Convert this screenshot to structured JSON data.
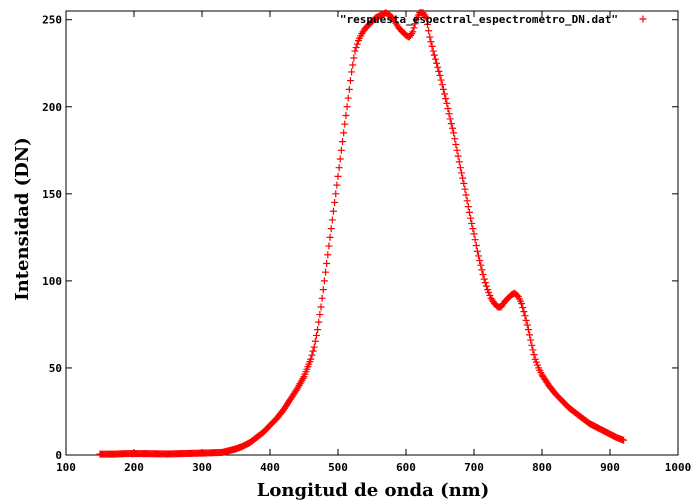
{
  "chart_data": {
    "type": "scatter",
    "title": "",
    "xlabel": "Longitud de onda (nm)",
    "ylabel": "Intensidad (DN)",
    "xlim": [
      100,
      1000
    ],
    "ylim": [
      0,
      255
    ],
    "xticks": [
      100,
      200,
      300,
      400,
      500,
      600,
      700,
      800,
      900,
      1000
    ],
    "yticks": [
      0,
      50,
      100,
      150,
      200,
      250
    ],
    "grid": false,
    "legend": "top-right",
    "marker_color": "#ff0000",
    "series": [
      {
        "name": "\"respuesta_espectral_espectrometro_DN.dat\"",
        "points": [
          [
            150,
            0.5
          ],
          [
            170,
            0.5
          ],
          [
            190,
            0.8
          ],
          [
            210,
            0.8
          ],
          [
            230,
            0.7
          ],
          [
            250,
            0.6
          ],
          [
            270,
            0.8
          ],
          [
            290,
            1
          ],
          [
            310,
            1.2
          ],
          [
            330,
            1.5
          ],
          [
            340,
            2.5
          ],
          [
            350,
            3.5
          ],
          [
            360,
            5
          ],
          [
            370,
            7
          ],
          [
            380,
            10
          ],
          [
            390,
            13
          ],
          [
            400,
            17
          ],
          [
            410,
            21
          ],
          [
            420,
            26
          ],
          [
            430,
            32
          ],
          [
            440,
            38
          ],
          [
            450,
            45
          ],
          [
            460,
            55
          ],
          [
            465,
            62
          ],
          [
            470,
            72
          ],
          [
            475,
            85
          ],
          [
            480,
            100
          ],
          [
            485,
            115
          ],
          [
            490,
            130
          ],
          [
            495,
            145
          ],
          [
            500,
            160
          ],
          [
            505,
            175
          ],
          [
            510,
            190
          ],
          [
            515,
            205
          ],
          [
            520,
            220
          ],
          [
            525,
            232
          ],
          [
            530,
            238
          ],
          [
            535,
            242
          ],
          [
            540,
            245
          ],
          [
            545,
            247
          ],
          [
            550,
            249
          ],
          [
            555,
            251
          ],
          [
            560,
            252
          ],
          [
            565,
            253
          ],
          [
            570,
            254
          ],
          [
            575,
            253
          ],
          [
            580,
            251
          ],
          [
            585,
            248
          ],
          [
            590,
            245
          ],
          [
            595,
            243
          ],
          [
            600,
            241
          ],
          [
            605,
            240
          ],
          [
            610,
            243
          ],
          [
            615,
            250
          ],
          [
            620,
            254
          ],
          [
            625,
            254
          ],
          [
            630,
            251
          ],
          [
            635,
            240
          ],
          [
            640,
            232
          ],
          [
            645,
            225
          ],
          [
            650,
            218
          ],
          [
            655,
            210
          ],
          [
            660,
            202
          ],
          [
            665,
            193
          ],
          [
            670,
            185
          ],
          [
            675,
            175
          ],
          [
            680,
            165
          ],
          [
            685,
            156
          ],
          [
            690,
            146
          ],
          [
            695,
            136
          ],
          [
            700,
            127
          ],
          [
            705,
            117
          ],
          [
            710,
            109
          ],
          [
            715,
            101
          ],
          [
            720,
            95
          ],
          [
            725,
            90
          ],
          [
            730,
            87
          ],
          [
            735,
            85
          ],
          [
            740,
            85
          ],
          [
            745,
            88
          ],
          [
            750,
            90
          ],
          [
            755,
            92
          ],
          [
            760,
            93
          ],
          [
            765,
            91
          ],
          [
            770,
            87
          ],
          [
            775,
            80
          ],
          [
            780,
            72
          ],
          [
            785,
            63
          ],
          [
            790,
            55
          ],
          [
            795,
            50
          ],
          [
            800,
            46
          ],
          [
            810,
            40
          ],
          [
            820,
            35
          ],
          [
            830,
            31
          ],
          [
            840,
            27
          ],
          [
            850,
            24
          ],
          [
            860,
            21
          ],
          [
            870,
            18
          ],
          [
            880,
            16
          ],
          [
            890,
            14
          ],
          [
            900,
            12
          ],
          [
            910,
            10
          ],
          [
            920,
            8.5
          ]
        ]
      }
    ]
  }
}
